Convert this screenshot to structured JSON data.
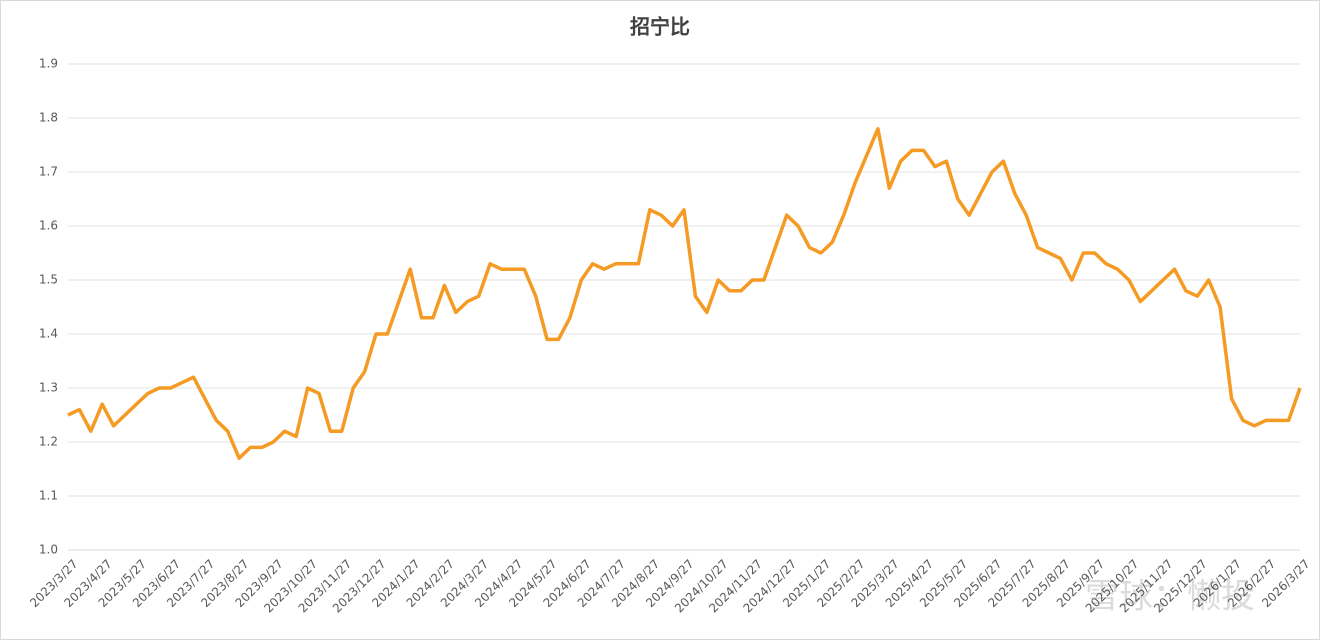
{
  "chart_data": {
    "type": "line",
    "title": "招宁比",
    "watermark": "雪球：懒投",
    "categories": [
      "2023/3/27",
      null,
      null,
      "2023/4/27",
      null,
      null,
      "2023/5/27",
      null,
      null,
      "2023/6/27",
      null,
      null,
      "2023/7/27",
      null,
      null,
      "2023/8/27",
      null,
      null,
      "2023/9/27",
      null,
      null,
      "2023/10/27",
      null,
      null,
      "2023/11/27",
      null,
      null,
      "2023/12/27",
      null,
      null,
      "2024/1/27",
      null,
      null,
      "2024/2/27",
      null,
      null,
      "2024/3/27",
      null,
      null,
      "2024/4/27",
      null,
      null,
      "2024/5/27",
      null,
      null,
      "2024/6/27",
      null,
      null,
      "2024/7/27",
      null,
      null,
      "2024/8/27",
      null,
      null,
      "2024/9/27",
      null,
      null,
      "2024/10/27",
      null,
      null,
      "2024/11/27",
      null,
      null,
      "2024/12/27",
      null,
      null,
      "2025/1/27",
      null,
      null,
      "2025/2/27",
      null,
      null,
      "2025/3/27",
      null,
      null,
      "2025/4/27",
      null,
      null,
      "2025/5/27",
      null,
      null,
      "2025/6/27",
      null,
      null,
      "2025/7/27",
      null,
      null,
      "2025/8/27",
      null,
      null,
      "2025/9/27",
      null,
      null,
      "2025/10/27",
      null,
      null,
      "2025/11/27",
      null,
      null,
      "2025/12/27",
      null,
      null,
      "2026/1/27",
      null,
      null,
      "2026/2/27",
      null,
      null,
      "2026/3/27"
    ],
    "series": [
      {
        "name": "招宁比",
        "color": "#f59a23",
        "values": [
          1.25,
          1.26,
          1.22,
          1.27,
          1.23,
          1.25,
          1.27,
          1.29,
          1.3,
          1.3,
          1.31,
          1.32,
          1.28,
          1.24,
          1.22,
          1.17,
          1.19,
          1.19,
          1.2,
          1.22,
          1.21,
          1.3,
          1.29,
          1.22,
          1.22,
          1.3,
          1.33,
          1.4,
          1.4,
          1.46,
          1.52,
          1.43,
          1.43,
          1.49,
          1.44,
          1.46,
          1.47,
          1.53,
          1.52,
          1.52,
          1.52,
          1.47,
          1.39,
          1.39,
          1.43,
          1.5,
          1.53,
          1.52,
          1.53,
          1.53,
          1.53,
          1.63,
          1.62,
          1.6,
          1.63,
          1.47,
          1.44,
          1.5,
          1.48,
          1.48,
          1.5,
          1.5,
          1.56,
          1.62,
          1.6,
          1.56,
          1.55,
          1.57,
          1.62,
          1.68,
          1.73,
          1.78,
          1.67,
          1.72,
          1.74,
          1.74,
          1.71,
          1.72,
          1.65,
          1.62,
          1.66,
          1.7,
          1.72,
          1.66,
          1.62,
          1.56,
          1.55,
          1.54,
          1.5,
          1.55,
          1.55,
          1.53,
          1.52,
          1.5,
          1.46,
          1.48,
          1.5,
          1.52,
          1.48,
          1.47,
          1.5,
          1.45,
          1.28,
          1.24,
          1.23,
          1.24,
          1.24,
          1.24,
          1.3
        ]
      }
    ],
    "ylim": [
      1.0,
      1.9
    ],
    "yticks": [
      {
        "value": 1.0,
        "label": "1.0"
      },
      1.1,
      1.2,
      1.3,
      1.4,
      1.5,
      1.6,
      1.7,
      1.8,
      1.9
    ],
    "grid": true
  }
}
